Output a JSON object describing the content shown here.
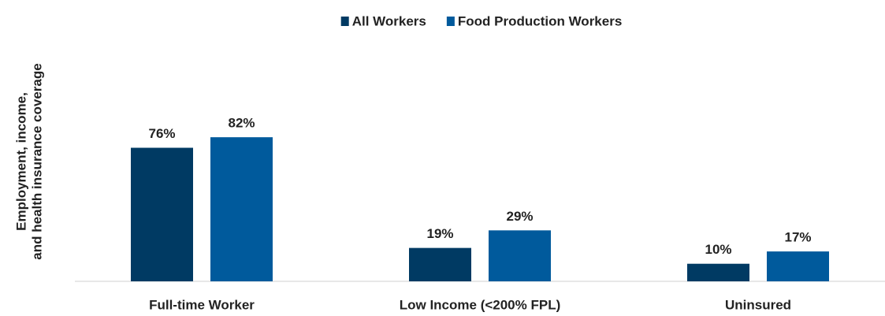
{
  "chart_data": {
    "type": "bar",
    "y_label": [
      "Employment, income,",
      "and health insurance coverage"
    ],
    "categories": [
      "Full-time Worker",
      "Low Income (<200% FPL)",
      "Uninsured"
    ],
    "series": [
      {
        "name": "All Workers",
        "color": "#003a63",
        "values": [
          76,
          19,
          10
        ],
        "value_labels": [
          "76%",
          "19%",
          "10%"
        ]
      },
      {
        "name": "Food Production Workers",
        "color": "#005a9c",
        "values": [
          82,
          29,
          17
        ],
        "value_labels": [
          "82%",
          "29%",
          "17%"
        ]
      }
    ],
    "legend": "top"
  }
}
